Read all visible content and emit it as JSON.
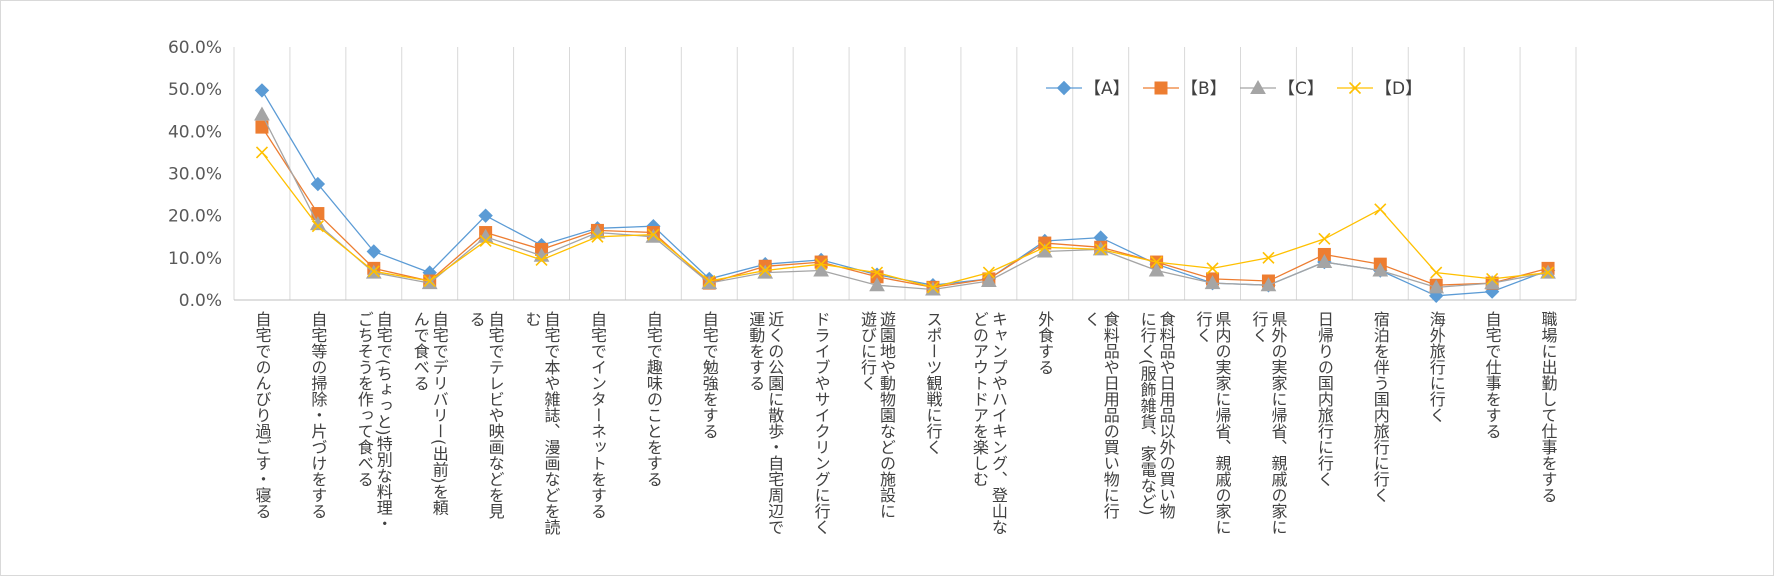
{
  "chart_data": {
    "type": "line",
    "categories": [
      "自宅でのんびり過ごす・寝る",
      "自宅等の掃除・片づけをする",
      "自宅で(ちょっと)特別な料理・ごちそうを作って食べる",
      "自宅でデリバリー(出前)を頼んで食べる",
      "自宅でテレビや映画などを見る",
      "自宅で本や雑誌、漫画などを読む",
      "自宅でインターネットをする",
      "自宅で趣味のことをする",
      "自宅で勉強をする",
      "近くの公園に散歩・自宅周辺で運動をする",
      "ドライブやサイクリングに行く",
      "遊園地や動物園などの施設に遊びに行く",
      "スポーツ観戦に行く",
      "キャンプやハイキング、登山などのアウトドアを楽しむ",
      "外食する",
      "食料品や日用品の買い物に行く",
      "食料品や日用品以外の買い物に行く(服飾雑貨、家電など)",
      "県内の実家に帰省、親戚の家に行く",
      "県外の実家に帰省、親戚の家に行く",
      "日帰りの国内旅行に行く",
      "宿泊を伴う国内旅行に行く",
      "海外旅行に行く",
      "自宅で仕事をする",
      "職場に出勤して仕事をする"
    ],
    "category_lines": [
      [
        "自宅でのんびり過ごす・寝る"
      ],
      [
        "自宅等の掃除・片づけをする"
      ],
      [
        "自宅で(ちょっと)特別な料理・",
        "ごちそうを作って食べる"
      ],
      [
        "自宅でデリバリー(出前)を頼",
        "んで食べる"
      ],
      [
        "自宅でテレビや映画などを見",
        "る"
      ],
      [
        "自宅で本や雑誌、漫画などを読",
        "む"
      ],
      [
        "自宅でインターネットをする"
      ],
      [
        "自宅で趣味のことをする"
      ],
      [
        "自宅で勉強をする"
      ],
      [
        "近くの公園に散歩・自宅周辺で",
        "運動をする"
      ],
      [
        "ドライブやサイクリングに行く"
      ],
      [
        "遊園地や動物園などの施設に",
        "遊びに行く"
      ],
      [
        "スポーツ観戦に行く"
      ],
      [
        "キャンプやハイキング、登山な",
        "どのアウトドアを楽しむ"
      ],
      [
        "外食する"
      ],
      [
        "食料品や日用品の買い物に行",
        "く"
      ],
      [
        "食料品や日用品以外の買い物",
        "に行く(服飾雑貨、家電など)"
      ],
      [
        "県内の実家に帰省、親戚の家に",
        "行く"
      ],
      [
        "県外の実家に帰省、親戚の家に",
        "行く"
      ],
      [
        "日帰りの国内旅行に行く"
      ],
      [
        "宿泊を伴う国内旅行に行く"
      ],
      [
        "海外旅行に行く"
      ],
      [
        "自宅で仕事をする"
      ],
      [
        "職場に出勤して仕事をする"
      ]
    ],
    "series": [
      {
        "name": "【A】",
        "color": "#5b9bd5",
        "marker": "diamond",
        "values": [
          49.7,
          27.5,
          11.5,
          6.5,
          20.0,
          13.0,
          17.0,
          17.5,
          5.0,
          8.5,
          9.5,
          6.0,
          3.5,
          5.0,
          14.0,
          14.8,
          8.5,
          4.0,
          3.5,
          9.0,
          7.0,
          1.0,
          2.0,
          7.0
        ]
      },
      {
        "name": "【B】",
        "color": "#ed7d31",
        "marker": "square",
        "values": [
          41.0,
          20.5,
          7.5,
          4.5,
          16.0,
          12.0,
          16.5,
          16.0,
          4.0,
          8.0,
          9.0,
          5.5,
          3.0,
          5.0,
          13.5,
          12.5,
          9.0,
          5.0,
          4.5,
          10.8,
          8.5,
          3.5,
          4.0,
          7.5
        ]
      },
      {
        "name": "【C】",
        "color": "#a5a5a5",
        "marker": "triangle",
        "values": [
          44.0,
          18.0,
          6.5,
          4.0,
          15.0,
          10.5,
          16.0,
          15.0,
          4.0,
          6.5,
          7.0,
          3.5,
          2.5,
          4.5,
          11.5,
          12.0,
          7.0,
          4.0,
          3.5,
          9.0,
          7.0,
          3.0,
          4.0,
          6.5
        ]
      },
      {
        "name": "【D】",
        "color": "#ffc000",
        "marker": "x",
        "values": [
          35.0,
          17.5,
          6.8,
          4.5,
          14.0,
          9.5,
          15.0,
          15.5,
          4.5,
          7.0,
          8.5,
          6.5,
          3.0,
          6.5,
          12.5,
          12.0,
          9.0,
          7.5,
          10.0,
          14.5,
          21.5,
          6.5,
          5.0,
          6.5
        ]
      }
    ],
    "ylim": [
      0,
      60
    ],
    "yticks": [
      "0.0%",
      "10.0%",
      "20.0%",
      "30.0%",
      "40.0%",
      "50.0%",
      "60.0%"
    ],
    "ytick_values": [
      0,
      10,
      20,
      30,
      40,
      50,
      60
    ],
    "grid": "vertical category lines",
    "legend_position": "top-right"
  }
}
